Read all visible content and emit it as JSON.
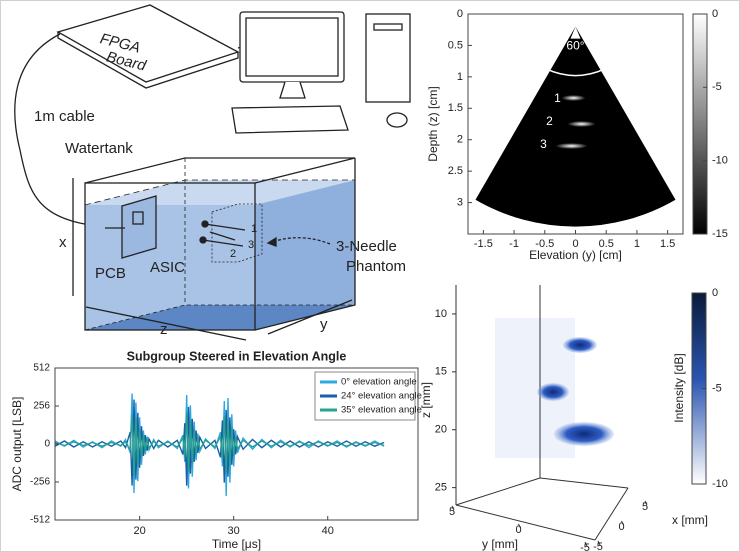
{
  "diagram": {
    "fpga_board": [
      "FPGA",
      "Board"
    ],
    "cable": "1m cable",
    "watertank": "Watertank",
    "pcb": "PCB",
    "asic": "ASIC",
    "needles": [
      "1",
      "2",
      "3"
    ],
    "phantom": [
      "3-Needle",
      "Phantom"
    ],
    "axes": {
      "x": "x",
      "z": "z",
      "y": "y"
    }
  },
  "chart_data": [
    {
      "type": "image",
      "xlabel": "Elevation (y) [cm]",
      "ylabel": "Depth (z) [cm]",
      "xlim": [
        -1.75,
        1.75
      ],
      "ylim": [
        0,
        3.5
      ],
      "y_reversed": true,
      "xticks": [
        -1.5,
        -1,
        -0.5,
        0,
        0.5,
        1,
        1.5
      ],
      "yticks": [
        0,
        0.5,
        1,
        1.5,
        2,
        2.5,
        3
      ],
      "colorbar": {
        "lim": [
          -15,
          0
        ],
        "ticks": [
          0,
          -5,
          -10,
          -15
        ]
      },
      "annotations": [
        "60°",
        "1",
        "2",
        "3"
      ]
    },
    {
      "type": "line",
      "title": "Subgroup Steered in Elevation Angle",
      "xlabel": "Time [μs]",
      "ylabel": "ADC output [LSB]",
      "xlim": [
        11,
        49.6
      ],
      "ylim": [
        -512,
        512
      ],
      "xticks": [
        20,
        30,
        40
      ],
      "yticks": [
        -512,
        -256,
        0,
        256,
        512
      ],
      "legend": "upper right",
      "x": [
        11,
        12,
        13,
        14,
        15,
        16,
        17,
        18,
        18.5,
        19,
        19.2,
        19.4,
        19.6,
        19.8,
        20,
        20.2,
        20.4,
        20.6,
        20.8,
        21,
        21.5,
        22,
        23,
        24,
        24.6,
        24.8,
        25,
        25.2,
        25.4,
        25.6,
        25.8,
        26,
        26.2,
        26.4,
        27,
        28,
        28.6,
        28.8,
        29,
        29.2,
        29.4,
        29.6,
        29.8,
        30,
        30.2,
        30.4,
        31,
        32,
        33,
        34,
        35,
        36,
        37,
        38,
        39,
        40,
        41,
        42,
        43,
        44,
        45,
        46
      ],
      "series": [
        {
          "name": "0° elevation angle",
          "color": "#2ea8e0",
          "values": [
            20,
            -15,
            25,
            -20,
            15,
            -25,
            20,
            -15,
            30,
            -60,
            340,
            -330,
            280,
            -250,
            180,
            -140,
            90,
            -70,
            50,
            -40,
            30,
            -25,
            20,
            -30,
            60,
            -120,
            330,
            -300,
            260,
            -220,
            150,
            -110,
            70,
            -50,
            35,
            -30,
            80,
            -150,
            290,
            -350,
            310,
            -260,
            200,
            -150,
            90,
            -60,
            40,
            -35,
            30,
            -25,
            25,
            -20,
            20,
            -25,
            20,
            -15,
            20,
            -20,
            15,
            -15,
            20,
            -15
          ]
        },
        {
          "name": "24° elevation angle",
          "color": "#1b5ea8",
          "values": [
            -15,
            20,
            -20,
            15,
            -20,
            15,
            -15,
            20,
            -25,
            80,
            -280,
            300,
            -240,
            210,
            -160,
            120,
            -80,
            60,
            -45,
            35,
            -30,
            25,
            -20,
            25,
            -70,
            140,
            -280,
            250,
            -200,
            170,
            -120,
            90,
            -60,
            45,
            -30,
            25,
            -90,
            160,
            -260,
            230,
            -220,
            180,
            -140,
            100,
            -70,
            50,
            -35,
            30,
            -25,
            25,
            -20,
            20,
            -20,
            15,
            -20,
            15,
            -15,
            20,
            -15,
            15,
            -15,
            10
          ]
        },
        {
          "name": "35° elevation angle",
          "color": "#26a38f",
          "values": [
            10,
            -10,
            15,
            -10,
            10,
            -15,
            10,
            -10,
            15,
            -40,
            200,
            -220,
            180,
            -150,
            110,
            -90,
            60,
            -45,
            35,
            -30,
            20,
            -15,
            15,
            -20,
            40,
            -90,
            210,
            -190,
            160,
            -130,
            100,
            -70,
            45,
            -35,
            25,
            -20,
            50,
            -100,
            190,
            -200,
            170,
            -140,
            110,
            -80,
            50,
            -35,
            25,
            -20,
            20,
            -15,
            15,
            -15,
            15,
            -10,
            15,
            -10,
            10,
            -15,
            10,
            -10,
            10,
            -10
          ]
        }
      ]
    },
    {
      "type": "volume",
      "zlabel": "z [mm]",
      "ylabel": "y [mm]",
      "xlabel": "x [mm]",
      "zlim": [
        7.5,
        26.5
      ],
      "zticks": [
        10,
        15,
        20,
        25
      ],
      "yticks": [
        5,
        0,
        -5
      ],
      "xticks": [
        5,
        0,
        -5
      ],
      "colorbar": {
        "label": "Intensity [dB]",
        "lim": [
          -10,
          0
        ],
        "ticks": [
          0,
          -5,
          -10
        ]
      }
    }
  ]
}
